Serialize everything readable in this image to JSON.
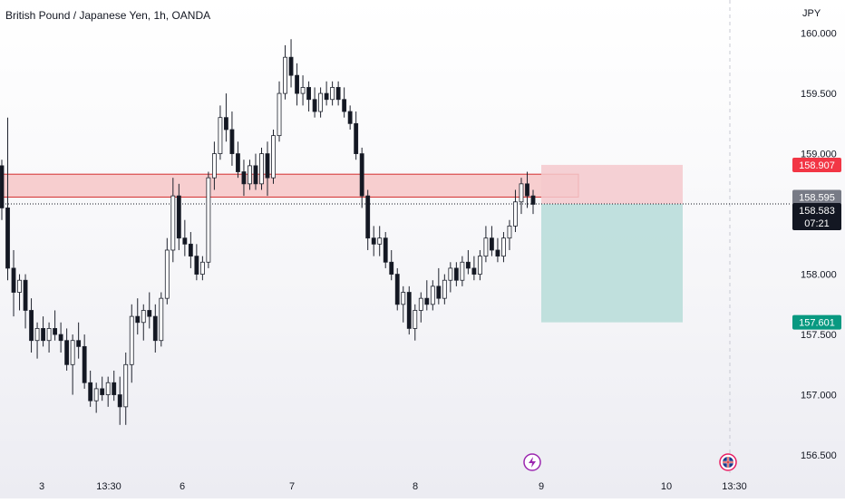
{
  "header": {
    "title": "British Pound / Japanese Yen, 1h, OANDA"
  },
  "colors": {
    "up": "#26a69a",
    "down": "#131722",
    "candle": "#1e222d",
    "zone_fill": "#f7c7c7",
    "zone_border": "#d32f2f",
    "stop_fill": "#f5c9cc",
    "target_fill": "#b6dcd8",
    "badge_red": "#f23645",
    "badge_gray": "#787b86",
    "badge_dark": "#131722",
    "badge_green": "#089981",
    "event_purple": "#9c27b0",
    "event_red": "#e91e63"
  },
  "chart_data": {
    "type": "candlestick",
    "title": "British Pound / Japanese Yen, 1h, OANDA",
    "currency": "JPY",
    "ylim": [
      156.35,
      160.2
    ],
    "y_ticks": [
      "160.000",
      "159.500",
      "159.000",
      "158.000",
      "157.500",
      "157.000",
      "156.500"
    ],
    "x_ticks": [
      "3",
      "13:30",
      "6",
      "7",
      "8",
      "9",
      "10",
      "13:30"
    ],
    "current_price": "158.583",
    "countdown": "07:21",
    "price_labels": {
      "stop": "158.907",
      "mid": "158.595",
      "current": "158.583",
      "target": "157.601"
    },
    "resistance_zone": {
      "top": 158.83,
      "bottom": 158.64
    },
    "position": {
      "entry": 158.583,
      "stop": 158.907,
      "target": 157.601
    },
    "events": [
      {
        "icon": "lightning-icon",
        "x": "9"
      },
      {
        "icon": "uk-flag-icon",
        "x": "13:30"
      }
    ],
    "candles": [
      [
        158.9,
        158.95,
        158.45,
        158.55
      ],
      [
        158.55,
        159.3,
        157.95,
        158.05
      ],
      [
        158.05,
        158.2,
        157.65,
        157.85
      ],
      [
        157.85,
        158.0,
        157.7,
        157.95
      ],
      [
        157.95,
        158.0,
        157.55,
        157.7
      ],
      [
        157.7,
        157.8,
        157.35,
        157.45
      ],
      [
        157.45,
        157.6,
        157.3,
        157.55
      ],
      [
        157.55,
        157.65,
        157.4,
        157.45
      ],
      [
        157.45,
        157.6,
        157.35,
        157.55
      ],
      [
        157.55,
        157.7,
        157.45,
        157.5
      ],
      [
        157.5,
        157.6,
        157.35,
        157.45
      ],
      [
        157.45,
        157.55,
        157.2,
        157.25
      ],
      [
        157.25,
        157.5,
        157.0,
        157.45
      ],
      [
        157.45,
        157.6,
        157.3,
        157.4
      ],
      [
        157.4,
        157.5,
        157.05,
        157.1
      ],
      [
        157.1,
        157.2,
        156.9,
        156.95
      ],
      [
        156.95,
        157.1,
        156.85,
        157.05
      ],
      [
        157.05,
        157.15,
        156.95,
        157.0
      ],
      [
        157.0,
        157.15,
        156.9,
        157.1
      ],
      [
        157.1,
        157.2,
        156.95,
        157.0
      ],
      [
        157.0,
        157.15,
        156.75,
        156.9
      ],
      [
        156.9,
        157.35,
        156.75,
        157.25
      ],
      [
        157.25,
        157.75,
        157.1,
        157.65
      ],
      [
        157.65,
        157.8,
        157.5,
        157.6
      ],
      [
        157.6,
        157.75,
        157.45,
        157.7
      ],
      [
        157.7,
        157.85,
        157.55,
        157.65
      ],
      [
        157.65,
        157.75,
        157.35,
        157.45
      ],
      [
        157.45,
        157.85,
        157.4,
        157.8
      ],
      [
        157.8,
        158.3,
        157.75,
        158.2
      ],
      [
        158.2,
        158.8,
        158.1,
        158.65
      ],
      [
        158.65,
        158.75,
        158.2,
        158.3
      ],
      [
        158.3,
        158.45,
        158.15,
        158.25
      ],
      [
        158.25,
        158.35,
        158.05,
        158.15
      ],
      [
        158.15,
        158.25,
        157.95,
        158.0
      ],
      [
        158.0,
        158.15,
        157.95,
        158.1
      ],
      [
        158.1,
        158.85,
        158.05,
        158.8
      ],
      [
        158.8,
        159.1,
        158.7,
        159.0
      ],
      [
        159.0,
        159.4,
        158.95,
        159.3
      ],
      [
        159.3,
        159.5,
        159.1,
        159.2
      ],
      [
        159.2,
        159.35,
        158.9,
        159.0
      ],
      [
        159.0,
        159.1,
        158.8,
        158.85
      ],
      [
        158.85,
        158.95,
        158.65,
        158.75
      ],
      [
        158.75,
        158.95,
        158.7,
        158.9
      ],
      [
        158.9,
        159.0,
        158.7,
        158.75
      ],
      [
        158.75,
        159.05,
        158.7,
        159.0
      ],
      [
        159.0,
        159.1,
        158.65,
        158.8
      ],
      [
        158.8,
        159.2,
        158.75,
        159.15
      ],
      [
        159.15,
        159.6,
        159.1,
        159.5
      ],
      [
        159.5,
        159.9,
        159.45,
        159.8
      ],
      [
        159.8,
        159.95,
        159.55,
        159.65
      ],
      [
        159.65,
        159.75,
        159.4,
        159.5
      ],
      [
        159.5,
        159.65,
        159.4,
        159.55
      ],
      [
        159.55,
        159.6,
        159.35,
        159.45
      ],
      [
        159.45,
        159.55,
        159.3,
        159.35
      ],
      [
        159.35,
        159.55,
        159.3,
        159.5
      ],
      [
        159.5,
        159.6,
        159.4,
        159.45
      ],
      [
        159.45,
        159.6,
        159.4,
        159.55
      ],
      [
        159.55,
        159.6,
        159.4,
        159.45
      ],
      [
        159.45,
        159.55,
        159.3,
        159.35
      ],
      [
        159.35,
        159.4,
        159.2,
        159.25
      ],
      [
        159.25,
        159.35,
        158.95,
        159.0
      ],
      [
        159.0,
        159.05,
        158.55,
        158.65
      ],
      [
        158.65,
        158.7,
        158.2,
        158.3
      ],
      [
        158.3,
        158.4,
        158.15,
        158.25
      ],
      [
        158.25,
        158.4,
        158.15,
        158.3
      ],
      [
        158.3,
        158.35,
        158.05,
        158.1
      ],
      [
        158.1,
        158.2,
        157.95,
        158.0
      ],
      [
        158.0,
        158.05,
        157.7,
        157.75
      ],
      [
        157.75,
        157.9,
        157.6,
        157.85
      ],
      [
        157.85,
        157.9,
        157.5,
        157.55
      ],
      [
        157.55,
        157.75,
        157.45,
        157.7
      ],
      [
        157.7,
        157.85,
        157.6,
        157.8
      ],
      [
        157.8,
        157.95,
        157.7,
        157.75
      ],
      [
        157.75,
        157.95,
        157.7,
        157.9
      ],
      [
        157.9,
        158.05,
        157.75,
        157.8
      ],
      [
        157.8,
        158.0,
        157.75,
        157.95
      ],
      [
        157.95,
        158.1,
        157.85,
        158.05
      ],
      [
        158.05,
        158.1,
        157.9,
        157.95
      ],
      [
        157.95,
        158.15,
        157.9,
        158.1
      ],
      [
        158.1,
        158.2,
        158.0,
        158.05
      ],
      [
        158.05,
        158.15,
        157.95,
        158.0
      ],
      [
        158.0,
        158.2,
        157.95,
        158.15
      ],
      [
        158.15,
        158.4,
        158.1,
        158.3
      ],
      [
        158.3,
        158.4,
        158.15,
        158.2
      ],
      [
        158.2,
        158.3,
        158.1,
        158.15
      ],
      [
        158.15,
        158.35,
        158.1,
        158.3
      ],
      [
        158.3,
        158.45,
        158.2,
        158.4
      ],
      [
        158.4,
        158.7,
        158.35,
        158.6
      ],
      [
        158.6,
        158.8,
        158.5,
        158.75
      ],
      [
        158.75,
        158.85,
        158.55,
        158.65
      ],
      [
        158.65,
        158.7,
        158.5,
        158.58
      ]
    ]
  }
}
